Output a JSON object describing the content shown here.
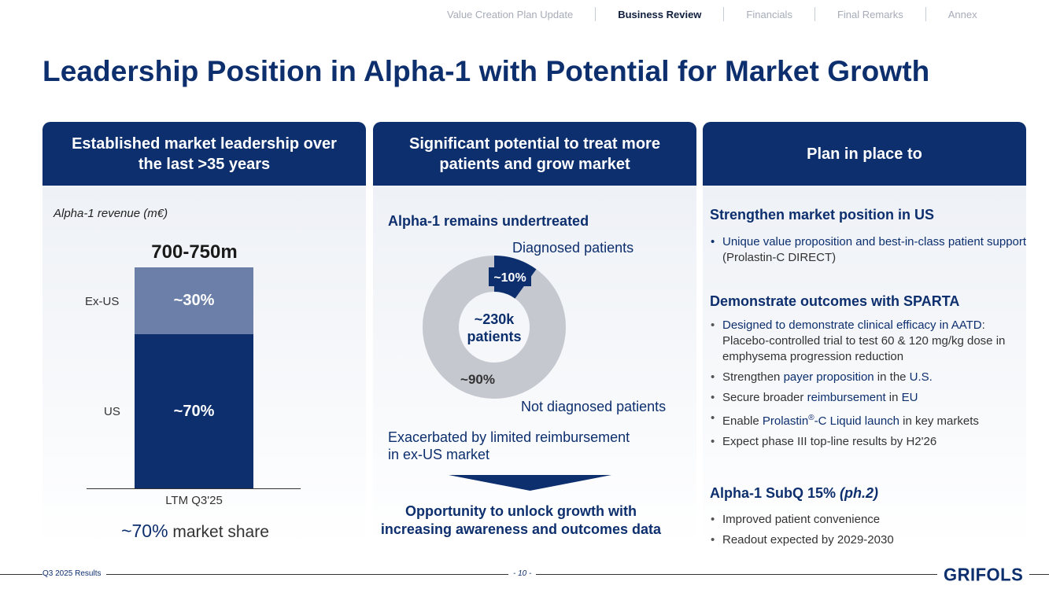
{
  "nav": {
    "items": [
      {
        "label": "Value Creation Plan Update"
      },
      {
        "label": "Business Review"
      },
      {
        "label": "Financials"
      },
      {
        "label": "Final Remarks"
      },
      {
        "label": "Annex"
      }
    ]
  },
  "title": "Leadership Position in Alpha-1 with Potential for Market Growth",
  "col1": {
    "header": "Established market leadership over the last >35 years",
    "revenue_label": "Alpha-1 revenue (m€)",
    "total": "700-750m",
    "exus_label": "Ex-US",
    "exus_value": "~30%",
    "us_label": "US",
    "us_value": "~70%",
    "period": "LTM Q3'25",
    "share_value": "~70%",
    "share_text": " market share"
  },
  "chart_data": {
    "type": "bar",
    "title": "Alpha-1 revenue (m€)",
    "categories": [
      "LTM Q3'25"
    ],
    "series": [
      {
        "name": "US",
        "values": [
          70
        ],
        "label": "~70%"
      },
      {
        "name": "Ex-US",
        "values": [
          30
        ],
        "label": "~30%"
      }
    ],
    "total_label": "700-750m",
    "stacked": true
  },
  "col2": {
    "header": "Significant potential to treat more patients and grow market",
    "undertreated": "Alpha-1 remains undertreated",
    "diagnosed_label": "Diagnosed patients",
    "diagnosed_pct": "~10%",
    "not_diagnosed_label": "Not diagnosed patients",
    "not_diagnosed_pct": "~90%",
    "center_line1": "~230k",
    "center_line2": "patients",
    "exacerbated_line1": "Exacerbated by limited reimbursement",
    "exacerbated_line2": "in ex-US market",
    "opportunity_line1": "Opportunity to unlock growth with",
    "opportunity_line2": "increasing awareness and outcomes data"
  },
  "donut": {
    "diagnosed_share": 0.1,
    "color_diagnosed": "#0d2f6e",
    "color_not": "#c5c8cf"
  },
  "col3": {
    "header": "Plan in place to",
    "sec1_title": "Strengthen market position in US",
    "sec1_b1_hl": "Unique value proposition and best-in-class patient support",
    "sec1_b1_rest": " (Prolastin-C DIRECT)",
    "sec2_title": "Demonstrate outcomes with SPARTA",
    "sec2_b1_hl": "Designed to demonstrate clinical efficacy in AATD",
    "sec2_b1_rest": ": Placebo-controlled trial to test 60 & 120 mg/kg dose in emphysema progression reduction",
    "sec2_b2_a": "Strengthen ",
    "sec2_b2_hl": "payer proposition",
    "sec2_b2_b": " in the ",
    "sec2_b2_hl2": "U.S.",
    "sec2_b3_a": "Secure broader ",
    "sec2_b3_hl": "reimbursement",
    "sec2_b3_b": " in ",
    "sec2_b3_hl2": "EU",
    "sec2_b4_a": "Enable ",
    "sec2_b4_hl": "Prolastin",
    "sec2_b4_sup": "®",
    "sec2_b4_hl2": "-C Liquid launch",
    "sec2_b4_b": " in key markets",
    "sec2_b5": "Expect phase III top-line results by H2'26",
    "sec3_title": "Alpha-1 SubQ 15% ",
    "sec3_title_it": "(ph.2)",
    "sec3_b1": "Improved patient convenience",
    "sec3_b2": "Readout expected by 2029-2030"
  },
  "footer": {
    "left": "Q3 2025 Results",
    "page": "- 10 -",
    "logo": "GRIFOLS"
  }
}
